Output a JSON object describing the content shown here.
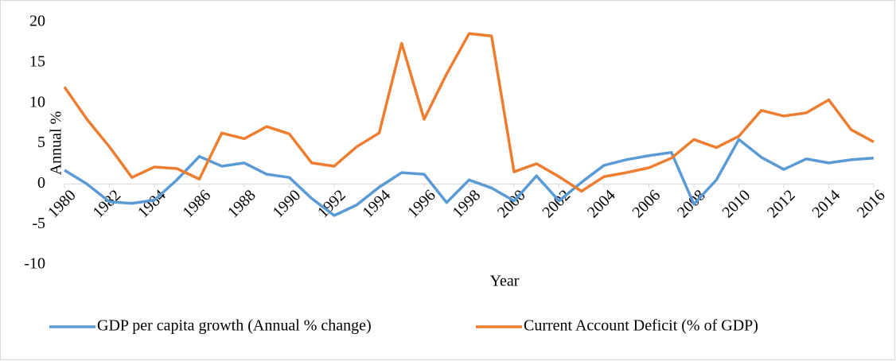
{
  "chart_data": {
    "type": "line",
    "x_label": "Year",
    "y_label": "Annual %",
    "x": [
      1980,
      1981,
      1982,
      1983,
      1984,
      1985,
      1986,
      1987,
      1988,
      1989,
      1990,
      1991,
      1992,
      1993,
      1994,
      1995,
      1996,
      1997,
      1998,
      1999,
      2000,
      2001,
      2002,
      2003,
      2004,
      2005,
      2006,
      2007,
      2008,
      2009,
      2010,
      2011,
      2012,
      2013,
      2014,
      2015,
      2016
    ],
    "xlim": [
      1980,
      2016
    ],
    "xticks": [
      1980,
      1982,
      1984,
      1986,
      1988,
      1990,
      1992,
      1994,
      1996,
      1998,
      2000,
      2002,
      2004,
      2006,
      2008,
      2010,
      2012,
      2014,
      2016
    ],
    "ylim": [
      -10,
      20
    ],
    "yticks": [
      20,
      15,
      10,
      5,
      0,
      -5,
      -10
    ],
    "grid": false,
    "legend": "bottom",
    "series": [
      {
        "name": "GDP per capita growth  (Annual % change)",
        "color": "#5b9bd5",
        "values": [
          1.7,
          0.0,
          -2.2,
          -2.4,
          -2.0,
          0.5,
          3.4,
          2.2,
          2.6,
          1.2,
          0.8,
          -1.8,
          -3.9,
          -2.6,
          -0.4,
          1.4,
          1.2,
          -2.3,
          0.5,
          -0.5,
          -2.1,
          1.0,
          -2.1,
          0.2,
          2.3,
          3.0,
          3.5,
          3.9,
          -2.5,
          0.5,
          5.5,
          3.3,
          1.8,
          3.1,
          2.6,
          3.0,
          3.2
        ]
      },
      {
        "name": "Current Account Deficit (% of GDP)",
        "color": "#ed7d31",
        "values": [
          12.0,
          8.0,
          4.6,
          0.8,
          2.1,
          1.9,
          0.6,
          6.3,
          5.6,
          7.1,
          6.2,
          2.6,
          2.2,
          4.6,
          6.3,
          17.4,
          8.0,
          13.6,
          18.6,
          18.3,
          1.5,
          2.5,
          0.9,
          -0.9,
          0.9,
          1.4,
          2.0,
          3.2,
          5.5,
          4.5,
          5.9,
          9.1,
          8.4,
          8.8,
          10.4,
          6.7,
          5.2
        ]
      }
    ]
  }
}
